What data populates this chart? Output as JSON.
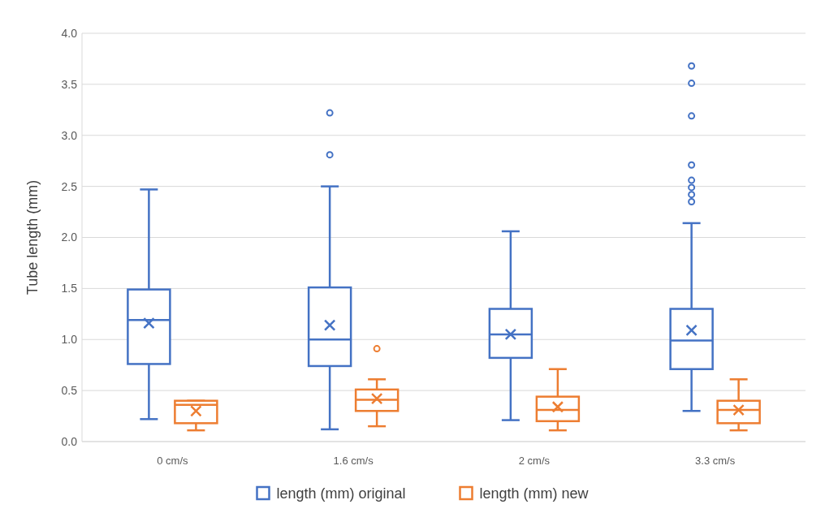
{
  "chart_data": {
    "type": "box",
    "ylabel": "Tube length (mm)",
    "categories": [
      "0 cm/s",
      "1.6 cm/s",
      "2 cm/s",
      "3.3 cm/s"
    ],
    "ylim": [
      0,
      4
    ],
    "yticks": [
      {
        "value": 0,
        "label": "0.0"
      },
      {
        "value": 0.5,
        "label": "0.5"
      },
      {
        "value": 1,
        "label": "1.0"
      },
      {
        "value": 1.5,
        "label": "1.5"
      },
      {
        "value": 2,
        "label": "2.0"
      },
      {
        "value": 2.5,
        "label": "2.5"
      },
      {
        "value": 3,
        "label": "3.0"
      },
      {
        "value": 3.5,
        "label": "3.5"
      },
      {
        "value": 4,
        "label": "4.0"
      }
    ],
    "grid": "y",
    "legend": "bottom",
    "series": [
      {
        "name": "length (mm) original",
        "color": "#4472c4",
        "boxes": [
          {
            "low": 0.22,
            "q1": 0.76,
            "median": 1.19,
            "q3": 1.49,
            "high": 2.47,
            "mean": 1.16
          },
          {
            "low": 0.12,
            "q1": 0.74,
            "median": 1.0,
            "q3": 1.51,
            "high": 2.5,
            "mean": 1.14,
            "outliers": [
              2.81,
              3.22
            ]
          },
          {
            "low": 0.21,
            "q1": 0.82,
            "median": 1.05,
            "q3": 1.3,
            "high": 2.06,
            "mean": 1.05
          },
          {
            "low": 0.3,
            "q1": 0.71,
            "median": 0.99,
            "q3": 1.3,
            "high": 2.14,
            "mean": 1.09,
            "outliers": [
              2.35,
              2.42,
              2.49,
              2.56,
              2.71,
              3.19,
              3.51,
              3.68
            ]
          }
        ]
      },
      {
        "name": "length (mm) new",
        "color": "#ed7d31",
        "boxes": [
          {
            "low": 0.11,
            "q1": 0.18,
            "median": 0.36,
            "q3": 0.4,
            "high": 0.4,
            "mean": 0.3
          },
          {
            "low": 0.15,
            "q1": 0.3,
            "median": 0.41,
            "q3": 0.51,
            "high": 0.61,
            "mean": 0.42,
            "outliers": [
              0.91
            ]
          },
          {
            "low": 0.11,
            "q1": 0.2,
            "median": 0.31,
            "q3": 0.44,
            "high": 0.71,
            "mean": 0.34
          },
          {
            "low": 0.11,
            "q1": 0.18,
            "median": 0.31,
            "q3": 0.4,
            "high": 0.61,
            "mean": 0.31
          }
        ]
      }
    ]
  }
}
